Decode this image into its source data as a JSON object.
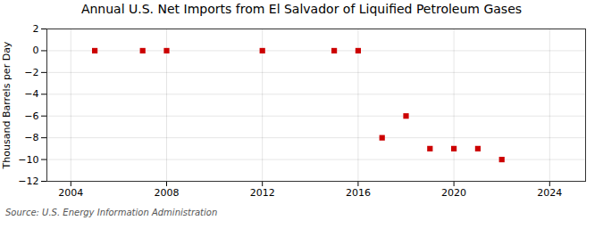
{
  "chart_data": {
    "type": "scatter",
    "title": "Annual U.S. Net Imports from El Salvador of Liquified Petroleum Gases",
    "ylabel": "Thousand Barrels per Day",
    "annotations": [
      "Source: U.S. Energy Information Administration"
    ],
    "x": [
      2005,
      2007,
      2008,
      2012,
      2015,
      2016,
      2017,
      2018,
      2019,
      2020,
      2021,
      2022
    ],
    "values": [
      0,
      0,
      0,
      0,
      0,
      0,
      -8,
      -6,
      -9,
      -9,
      -9,
      -10
    ],
    "color": "#cc0000",
    "marker": "square",
    "xlim": [
      2003,
      2025.5
    ],
    "ylim": [
      -12,
      2
    ],
    "xticks": [
      2004,
      2008,
      2012,
      2016,
      2020,
      2024
    ],
    "yticks": [
      2,
      0,
      -2,
      -4,
      -6,
      -8,
      -10,
      -12
    ],
    "grid": true
  }
}
